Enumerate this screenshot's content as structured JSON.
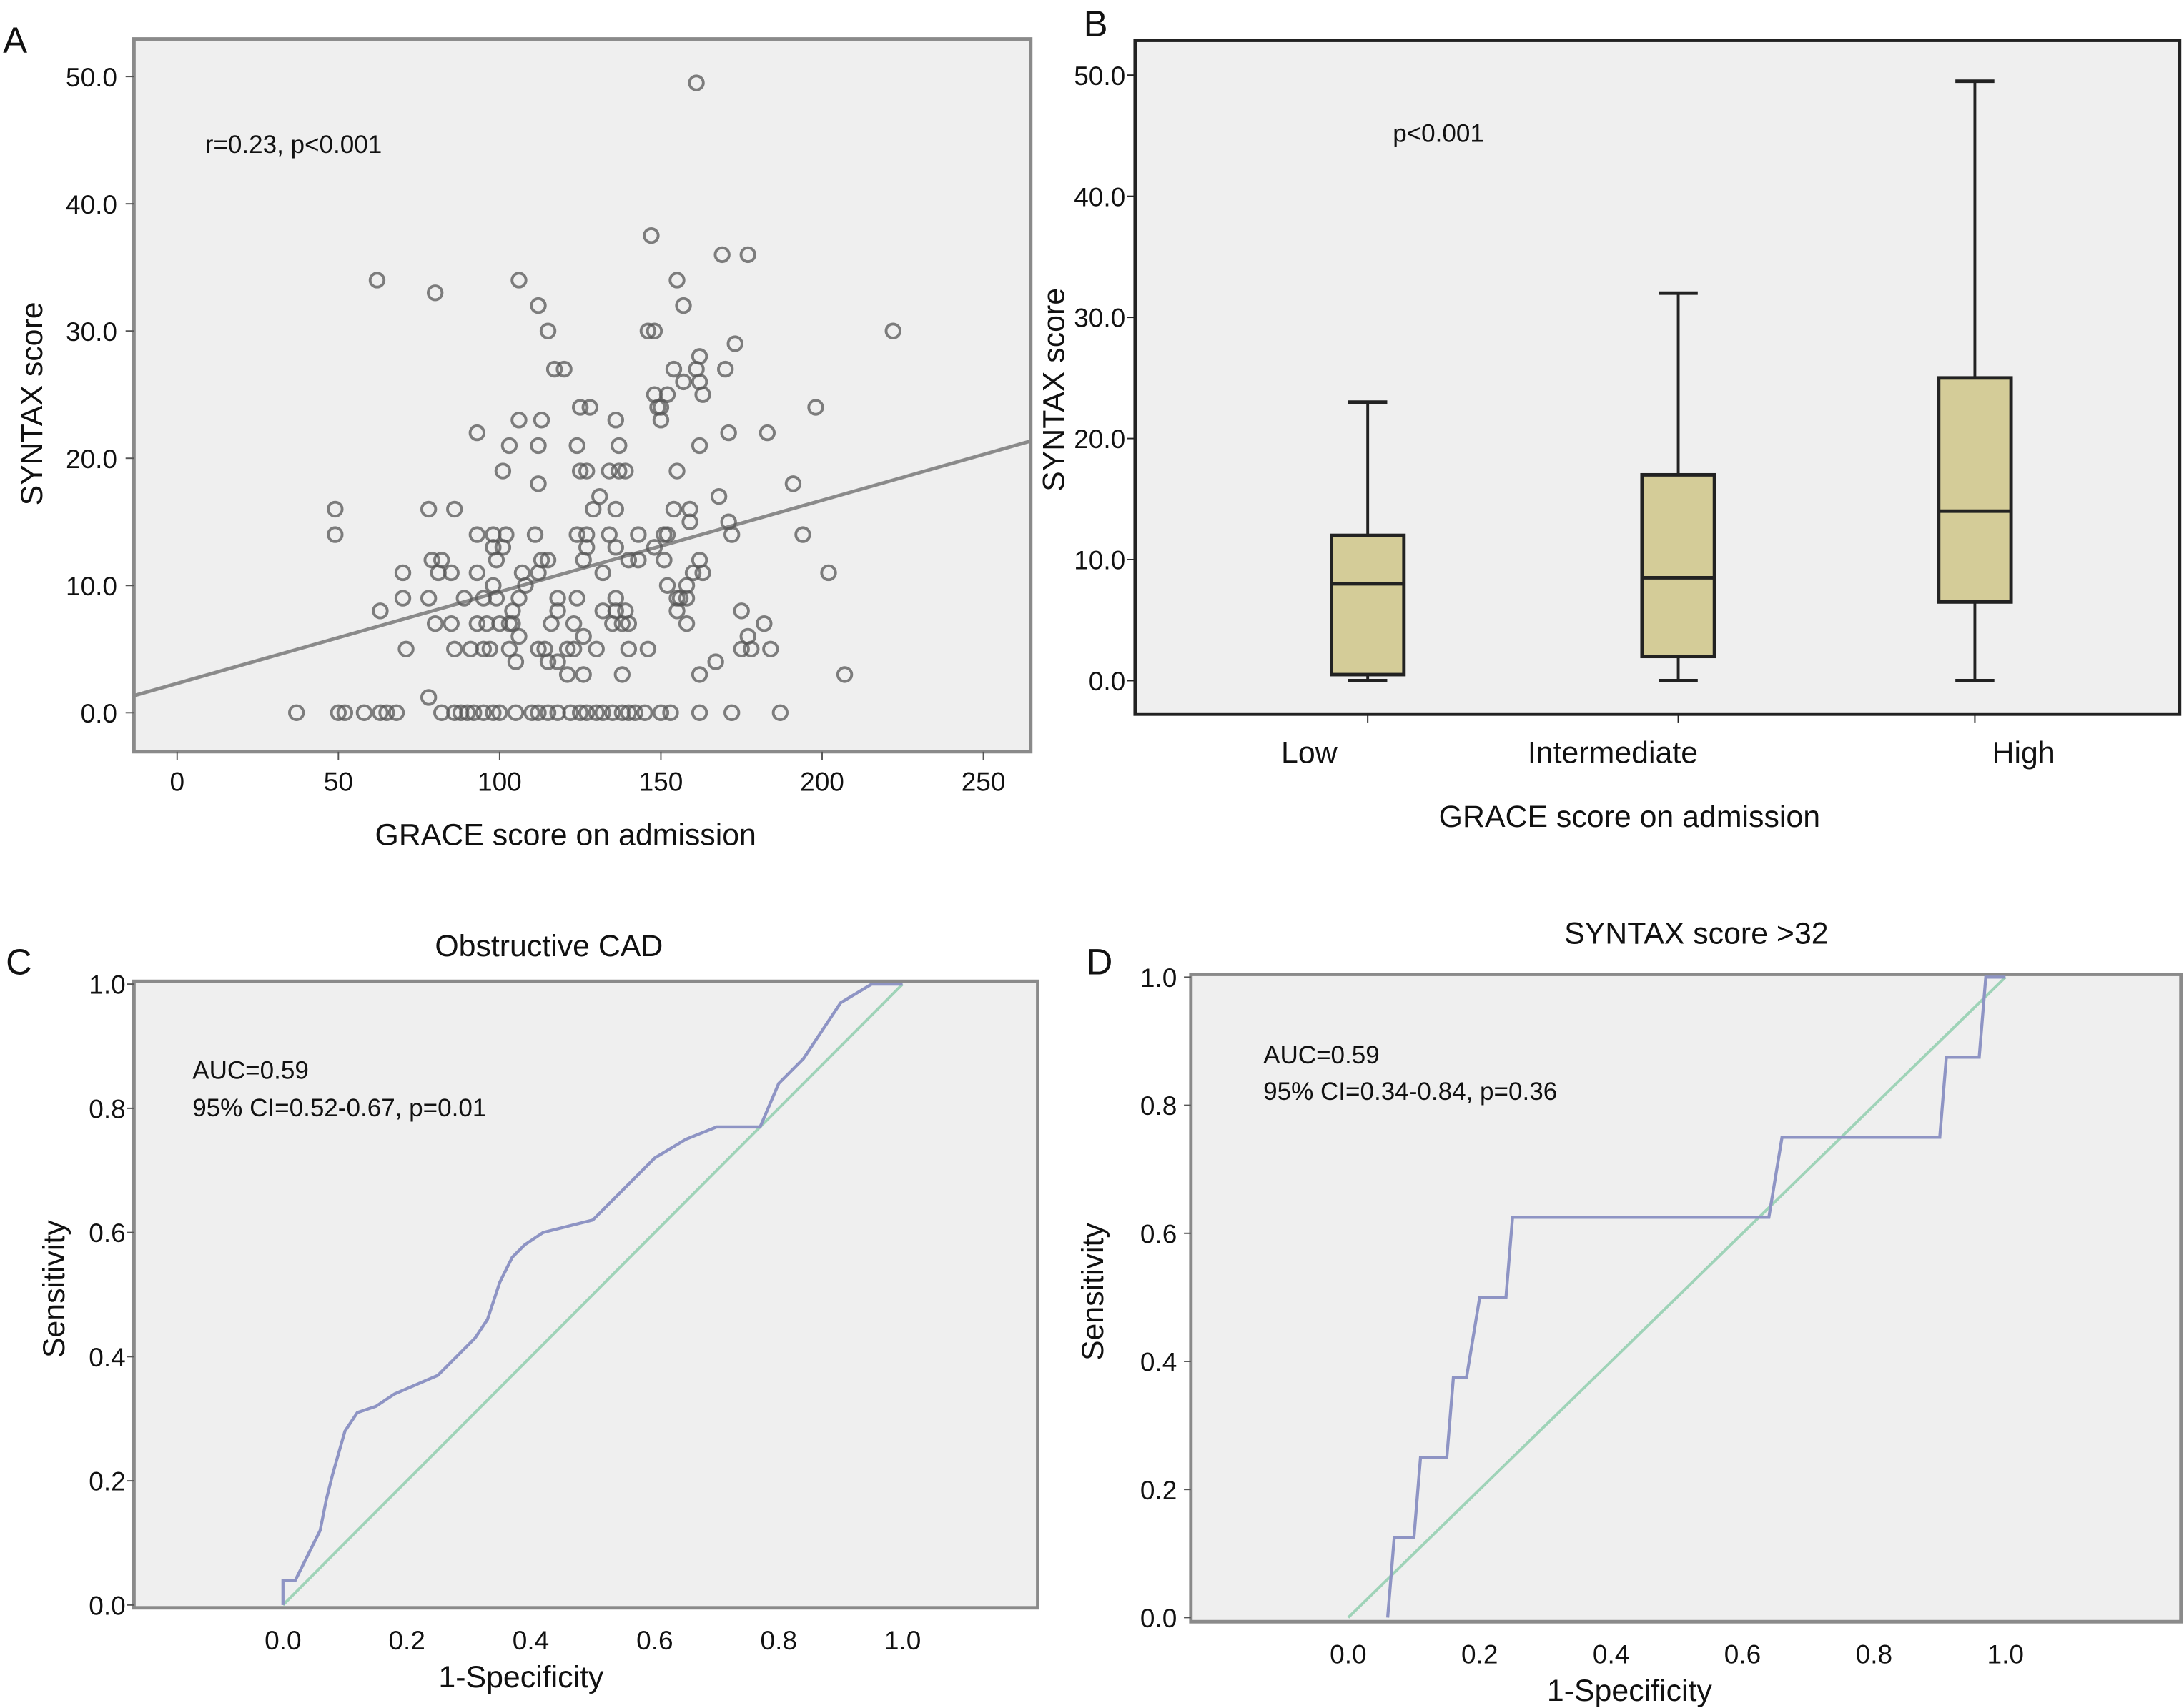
{
  "chart_data": [
    {
      "panel": "A",
      "type": "scatter",
      "xlabel": "GRACE score on admission",
      "ylabel": "SYNTAX score",
      "annotation": "r=0.23, p<0.001",
      "xlim": [
        -13,
        265
      ],
      "ylim": [
        -3,
        52
      ],
      "xticks": [
        "0",
        "50",
        "100",
        "150",
        "200",
        "250"
      ],
      "yticks": [
        "0.0",
        "10.0",
        "20.0",
        "30.0",
        "40.0",
        "50.0"
      ],
      "regression_line": {
        "intercept": 2.3,
        "slope": 0.072
      },
      "point_rows": [
        {
          "y": 0,
          "x": [
            37,
            50,
            52,
            58,
            63,
            65,
            68,
            82,
            86,
            88,
            90,
            92,
            95,
            98,
            100,
            105,
            110,
            112,
            115,
            118,
            122,
            125,
            127,
            130,
            132,
            135,
            138,
            140,
            142,
            145,
            150,
            153,
            162,
            172,
            187
          ]
        },
        {
          "y": 1.2,
          "x": [
            78
          ]
        },
        {
          "y": 3,
          "x": [
            121,
            126,
            138,
            162,
            207
          ]
        },
        {
          "y": 4,
          "x": [
            115,
            118,
            167
          ]
        },
        {
          "y": 4,
          "x": [
            105
          ]
        },
        {
          "y": 5,
          "x": [
            71,
            86,
            91,
            95,
            97,
            103,
            112,
            114,
            121,
            123,
            130,
            140,
            146,
            175,
            178,
            184
          ]
        },
        {
          "y": 6,
          "x": [
            106,
            126,
            177
          ]
        },
        {
          "y": 7,
          "x": [
            80,
            85,
            93,
            96,
            100,
            103,
            104,
            116,
            123,
            135,
            138,
            140,
            158,
            182
          ]
        },
        {
          "y": 8,
          "x": [
            63,
            104,
            118,
            132,
            136,
            139,
            155,
            175
          ]
        },
        {
          "y": 9,
          "x": [
            70,
            78,
            89,
            95,
            99,
            106,
            118,
            124,
            136,
            155,
            156,
            158
          ]
        },
        {
          "y": 10,
          "x": [
            98,
            108,
            152,
            158
          ]
        },
        {
          "y": 11,
          "x": [
            70,
            81,
            85,
            93,
            107,
            112,
            132,
            163,
            160,
            202
          ]
        },
        {
          "y": 12,
          "x": [
            79,
            82,
            99,
            113,
            115,
            126,
            140,
            143,
            151,
            162
          ]
        },
        {
          "y": 13,
          "x": [
            98,
            101,
            127,
            136,
            148
          ]
        },
        {
          "y": 14,
          "x": [
            49,
            93,
            98,
            102,
            111,
            124,
            127,
            134,
            143,
            151,
            152,
            172,
            194
          ]
        },
        {
          "y": 15,
          "x": [
            159,
            171
          ]
        },
        {
          "y": 16,
          "x": [
            49,
            78,
            86,
            129,
            136,
            154,
            159
          ]
        },
        {
          "y": 17,
          "x": [
            131,
            168
          ]
        },
        {
          "y": 18,
          "x": [
            112,
            191
          ]
        },
        {
          "y": 19,
          "x": [
            101,
            125,
            127,
            134,
            137,
            139,
            155
          ]
        },
        {
          "y": 21,
          "x": [
            103,
            112,
            124,
            137,
            162
          ]
        },
        {
          "y": 22,
          "x": [
            93,
            171,
            183
          ]
        },
        {
          "y": 23,
          "x": [
            106,
            113,
            136,
            150
          ]
        },
        {
          "y": 24,
          "x": [
            125,
            128,
            149,
            150,
            198
          ]
        },
        {
          "y": 25,
          "x": [
            148,
            152,
            163
          ]
        },
        {
          "y": 26,
          "x": [
            157,
            162
          ]
        },
        {
          "y": 27,
          "x": [
            117,
            120,
            154,
            161,
            170
          ]
        },
        {
          "y": 28,
          "x": [
            162
          ]
        },
        {
          "y": 29,
          "x": [
            173
          ]
        },
        {
          "y": 30,
          "x": [
            115,
            146,
            148,
            222
          ]
        },
        {
          "y": 32,
          "x": [
            112,
            157
          ]
        },
        {
          "y": 33,
          "x": [
            80
          ]
        },
        {
          "y": 34,
          "x": [
            62,
            106,
            155
          ]
        },
        {
          "y": 36,
          "x": [
            169,
            177
          ]
        },
        {
          "y": 37.5,
          "x": [
            147
          ]
        },
        {
          "y": 49.5,
          "x": [
            161
          ]
        }
      ]
    },
    {
      "panel": "B",
      "type": "box",
      "xlabel": "GRACE score on admission",
      "ylabel": "SYNTAX score",
      "annotation": "p<0.001",
      "ylim": [
        -3,
        52
      ],
      "yticks": [
        "0.0",
        "10.0",
        "20.0",
        "30.0",
        "40.0",
        "50.0"
      ],
      "box_color": "#d4cc98",
      "categories": [
        "Low",
        "Intermediate",
        "High"
      ],
      "boxes": [
        {
          "min": 0,
          "q1": 0.5,
          "median": 8,
          "q3": 12,
          "max": 23
        },
        {
          "min": 0,
          "q1": 2,
          "median": 8.5,
          "q3": 17,
          "max": 32
        },
        {
          "min": 0,
          "q1": 6.5,
          "median": 14,
          "q3": 25,
          "max": 49.5
        }
      ]
    },
    {
      "panel": "C",
      "type": "line",
      "title": "Obstructive CAD",
      "xlabel": "1-Specificity",
      "ylabel": "Sensitivity",
      "annotation": [
        "AUC=0.59",
        "95% CI=0.52-0.67, p=0.01"
      ],
      "xticks": [
        "0.0",
        "0.2",
        "0.4",
        "0.6",
        "0.8",
        "1.0"
      ],
      "yticks": [
        "0.0",
        "0.2",
        "0.4",
        "0.6",
        "0.8",
        "1.0"
      ],
      "curve_color": "#8e94c4",
      "reference_color": "#9fd3b8",
      "roc": [
        [
          0,
          0
        ],
        [
          0,
          0.04
        ],
        [
          0.02,
          0.04
        ],
        [
          0.04,
          0.08
        ],
        [
          0.06,
          0.12
        ],
        [
          0.07,
          0.17
        ],
        [
          0.08,
          0.21
        ],
        [
          0.1,
          0.28
        ],
        [
          0.12,
          0.31
        ],
        [
          0.15,
          0.32
        ],
        [
          0.18,
          0.34
        ],
        [
          0.25,
          0.37
        ],
        [
          0.28,
          0.4
        ],
        [
          0.31,
          0.43
        ],
        [
          0.33,
          0.46
        ],
        [
          0.35,
          0.52
        ],
        [
          0.37,
          0.56
        ],
        [
          0.39,
          0.58
        ],
        [
          0.42,
          0.6
        ],
        [
          0.5,
          0.62
        ],
        [
          0.55,
          0.67
        ],
        [
          0.6,
          0.72
        ],
        [
          0.65,
          0.75
        ],
        [
          0.7,
          0.77
        ],
        [
          0.77,
          0.77
        ],
        [
          0.8,
          0.84
        ],
        [
          0.84,
          0.88
        ],
        [
          0.88,
          0.94
        ],
        [
          0.9,
          0.97
        ],
        [
          0.95,
          1
        ],
        [
          1,
          1
        ]
      ]
    },
    {
      "panel": "D",
      "type": "line",
      "title": "SYNTAX score >32",
      "xlabel": "1-Specificity",
      "ylabel": "Sensitivity",
      "annotation": [
        "AUC=0.59",
        "95% CI=0.34-0.84, p=0.36"
      ],
      "xticks": [
        "0.0",
        "0.2",
        "0.4",
        "0.6",
        "0.8",
        "1.0"
      ],
      "yticks": [
        "0.0",
        "0.2",
        "0.4",
        "0.6",
        "0.8",
        "1.0"
      ],
      "curve_color": "#8e94c4",
      "reference_color": "#9fd3b8",
      "roc": [
        [
          0.06,
          0
        ],
        [
          0.07,
          0.125
        ],
        [
          0.1,
          0.125
        ],
        [
          0.11,
          0.25
        ],
        [
          0.15,
          0.25
        ],
        [
          0.16,
          0.375
        ],
        [
          0.18,
          0.375
        ],
        [
          0.2,
          0.5
        ],
        [
          0.24,
          0.5
        ],
        [
          0.25,
          0.625
        ],
        [
          0.64,
          0.625
        ],
        [
          0.66,
          0.75
        ],
        [
          0.9,
          0.75
        ],
        [
          0.91,
          0.875
        ],
        [
          0.96,
          0.875
        ],
        [
          0.97,
          1
        ],
        [
          1,
          1
        ]
      ]
    }
  ]
}
